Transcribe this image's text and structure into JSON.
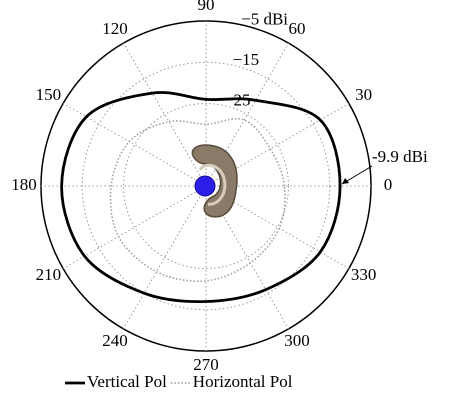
{
  "chart_data": {
    "type": "polar",
    "theta": [
      0,
      30,
      60,
      90,
      120,
      150,
      180,
      210,
      240,
      270,
      300,
      330
    ],
    "thetaticks": [
      0,
      30,
      60,
      90,
      120,
      150,
      180,
      210,
      240,
      270,
      300,
      330
    ],
    "rlim": [
      -45,
      -5
    ],
    "rticks": [
      {
        "value": -5,
        "label": "−5 dBi"
      },
      {
        "value": -15,
        "label": "−15"
      },
      {
        "value": -25,
        "label": "−25"
      }
    ],
    "grid": true,
    "series": [
      {
        "name": "Vertical Pol",
        "color": "#000000",
        "style": "solid",
        "values": [
          -12.5,
          -13,
          -21,
          -24,
          -19,
          -11.5,
          -10,
          -11,
          -15,
          -17,
          -16,
          -13
        ]
      },
      {
        "name": "Horizontal Pol",
        "color": "#9a9a9a",
        "style": "dotted",
        "values": [
          -26,
          -27,
          -26.5,
          -30,
          -27,
          -23.5,
          -22,
          -20.5,
          -21,
          -22,
          -23.5,
          -24.5
        ]
      }
    ],
    "annotation": {
      "text": "-9.9 dBi",
      "theta": 0
    },
    "legend": "bottom"
  }
}
